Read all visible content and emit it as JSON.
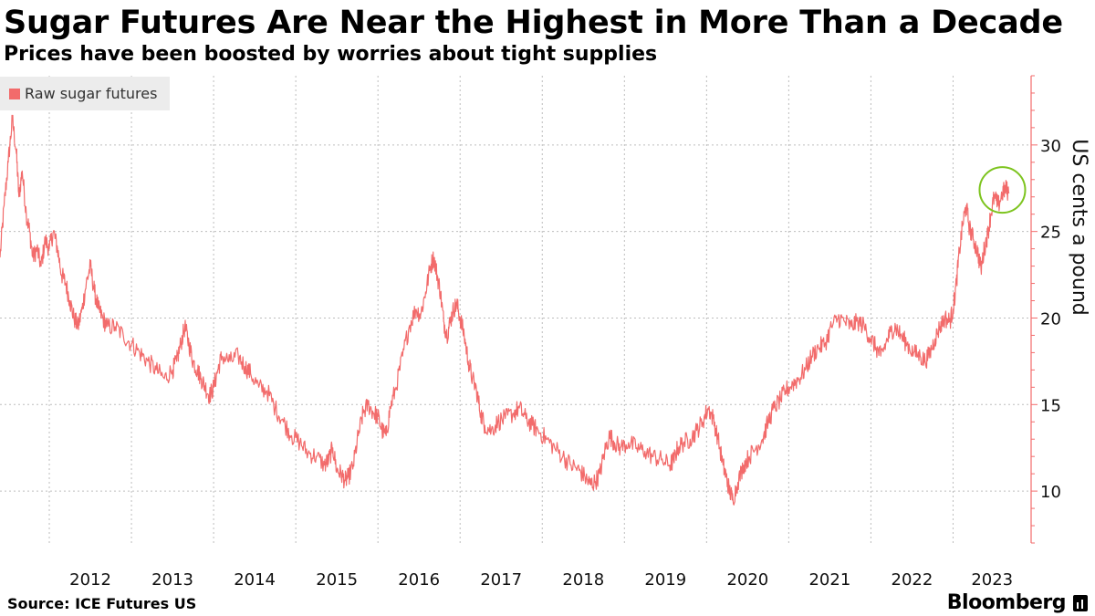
{
  "header": {
    "title": "Sugar Futures Are Near the Highest in More Than a Decade",
    "subtitle": "Prices have been boosted by worries about tight supplies"
  },
  "footer": {
    "source": "Source: ICE Futures US",
    "brand": "Bloomberg"
  },
  "colors": {
    "series": "#f26b6b",
    "highlight": "#7dc41f",
    "grid": "#bdbdbd"
  },
  "chart_data": {
    "type": "line",
    "title": "Sugar Futures Are Near the Highest in More Than a Decade",
    "subtitle": "Prices have been boosted by worries about tight supplies",
    "ylabel": "US cents a pound",
    "xlabel": "",
    "ylim": [
      7,
      34
    ],
    "xlim": [
      2011.4,
      2023.95
    ],
    "yticks": [
      10,
      15,
      20,
      25,
      30
    ],
    "xticks": [
      "2012",
      "2013",
      "2014",
      "2015",
      "2016",
      "2017",
      "2018",
      "2019",
      "2020",
      "2021",
      "2022",
      "2023"
    ],
    "xtick_positions": [
      2012.0,
      2013.0,
      2014.0,
      2015.0,
      2016.0,
      2017.0,
      2018.0,
      2019.0,
      2020.0,
      2021.0,
      2022.0,
      2023.0
    ],
    "grid": true,
    "legend": "top-left",
    "series": [
      {
        "name": "Raw sugar futures",
        "points": [
          [
            2011.4,
            23.5
          ],
          [
            2011.45,
            26.5
          ],
          [
            2011.5,
            29.0
          ],
          [
            2011.55,
            31.5
          ],
          [
            2011.6,
            29.5
          ],
          [
            2011.63,
            27.0
          ],
          [
            2011.67,
            28.5
          ],
          [
            2011.72,
            26.0
          ],
          [
            2011.76,
            25.0
          ],
          [
            2011.8,
            23.5
          ],
          [
            2011.85,
            24.0
          ],
          [
            2011.9,
            23.0
          ],
          [
            2011.95,
            24.5
          ],
          [
            2012.0,
            24.0
          ],
          [
            2012.05,
            25.0
          ],
          [
            2012.1,
            24.0
          ],
          [
            2012.15,
            22.5
          ],
          [
            2012.2,
            22.0
          ],
          [
            2012.25,
            21.0
          ],
          [
            2012.3,
            20.0
          ],
          [
            2012.35,
            19.5
          ],
          [
            2012.4,
            20.5
          ],
          [
            2012.45,
            22.0
          ],
          [
            2012.5,
            23.0
          ],
          [
            2012.55,
            21.5
          ],
          [
            2012.6,
            20.5
          ],
          [
            2012.65,
            20.0
          ],
          [
            2012.7,
            19.5
          ],
          [
            2012.8,
            19.5
          ],
          [
            2012.9,
            19.0
          ],
          [
            2013.0,
            18.5
          ],
          [
            2013.1,
            18.0
          ],
          [
            2013.2,
            17.5
          ],
          [
            2013.3,
            17.0
          ],
          [
            2013.4,
            16.5
          ],
          [
            2013.5,
            17.0
          ],
          [
            2013.55,
            17.5
          ],
          [
            2013.6,
            18.5
          ],
          [
            2013.65,
            19.5
          ],
          [
            2013.7,
            18.5
          ],
          [
            2013.75,
            17.5
          ],
          [
            2013.8,
            17.0
          ],
          [
            2013.85,
            16.5
          ],
          [
            2013.9,
            16.0
          ],
          [
            2013.95,
            15.5
          ],
          [
            2014.0,
            16.0
          ],
          [
            2014.05,
            17.0
          ],
          [
            2014.1,
            17.8
          ],
          [
            2014.2,
            17.5
          ],
          [
            2014.3,
            17.8
          ],
          [
            2014.38,
            17.2
          ],
          [
            2014.45,
            16.8
          ],
          [
            2014.55,
            16.0
          ],
          [
            2014.65,
            15.8
          ],
          [
            2014.75,
            14.8
          ],
          [
            2014.85,
            14.0
          ],
          [
            2014.95,
            13.2
          ],
          [
            2015.05,
            12.8
          ],
          [
            2015.15,
            12.2
          ],
          [
            2015.25,
            12.0
          ],
          [
            2015.35,
            11.5
          ],
          [
            2015.4,
            11.8
          ],
          [
            2015.45,
            12.5
          ],
          [
            2015.5,
            11.2
          ],
          [
            2015.55,
            11.0
          ],
          [
            2015.6,
            10.6
          ],
          [
            2015.64,
            10.8
          ],
          [
            2015.7,
            11.5
          ],
          [
            2015.76,
            13.2
          ],
          [
            2015.82,
            14.5
          ],
          [
            2015.88,
            15.0
          ],
          [
            2015.95,
            14.5
          ],
          [
            2016.0,
            14.3
          ],
          [
            2016.05,
            13.5
          ],
          [
            2016.1,
            13.2
          ],
          [
            2016.15,
            14.8
          ],
          [
            2016.22,
            16.0
          ],
          [
            2016.3,
            17.8
          ],
          [
            2016.38,
            19.5
          ],
          [
            2016.46,
            20.5
          ],
          [
            2016.52,
            20.2
          ],
          [
            2016.58,
            21.5
          ],
          [
            2016.64,
            23.0
          ],
          [
            2016.68,
            23.5
          ],
          [
            2016.72,
            22.5
          ],
          [
            2016.76,
            21.5
          ],
          [
            2016.8,
            19.8
          ],
          [
            2016.84,
            19.0
          ],
          [
            2016.88,
            19.8
          ],
          [
            2016.92,
            20.5
          ],
          [
            2016.96,
            20.8
          ],
          [
            2017.0,
            20.0
          ],
          [
            2017.05,
            19.0
          ],
          [
            2017.1,
            17.5
          ],
          [
            2017.15,
            16.5
          ],
          [
            2017.2,
            15.8
          ],
          [
            2017.25,
            14.5
          ],
          [
            2017.3,
            13.8
          ],
          [
            2017.38,
            13.5
          ],
          [
            2017.46,
            14.0
          ],
          [
            2017.55,
            14.2
          ],
          [
            2017.65,
            14.5
          ],
          [
            2017.72,
            14.8
          ],
          [
            2017.8,
            14.2
          ],
          [
            2017.88,
            13.8
          ],
          [
            2017.95,
            13.5
          ],
          [
            2018.05,
            13.0
          ],
          [
            2018.15,
            12.5
          ],
          [
            2018.25,
            12.0
          ],
          [
            2018.35,
            11.5
          ],
          [
            2018.45,
            11.2
          ],
          [
            2018.52,
            10.8
          ],
          [
            2018.58,
            10.4
          ],
          [
            2018.64,
            10.5
          ],
          [
            2018.7,
            11.0
          ],
          [
            2018.76,
            12.3
          ],
          [
            2018.82,
            13.2
          ],
          [
            2018.88,
            12.8
          ],
          [
            2018.95,
            12.5
          ],
          [
            2019.05,
            12.8
          ],
          [
            2019.15,
            12.5
          ],
          [
            2019.25,
            12.3
          ],
          [
            2019.35,
            12.0
          ],
          [
            2019.45,
            11.8
          ],
          [
            2019.55,
            11.5
          ],
          [
            2019.6,
            11.8
          ],
          [
            2019.65,
            12.5
          ],
          [
            2019.72,
            12.8
          ],
          [
            2019.8,
            13.0
          ],
          [
            2019.88,
            13.5
          ],
          [
            2019.95,
            14.0
          ],
          [
            2020.02,
            14.8
          ],
          [
            2020.08,
            14.2
          ],
          [
            2020.14,
            13.0
          ],
          [
            2020.2,
            11.5
          ],
          [
            2020.24,
            10.8
          ],
          [
            2020.28,
            10.0
          ],
          [
            2020.32,
            9.5
          ],
          [
            2020.38,
            10.5
          ],
          [
            2020.45,
            11.5
          ],
          [
            2020.52,
            12.0
          ],
          [
            2020.6,
            12.5
          ],
          [
            2020.68,
            13.0
          ],
          [
            2020.75,
            14.0
          ],
          [
            2020.82,
            14.8
          ],
          [
            2020.9,
            15.3
          ],
          [
            2020.96,
            15.8
          ],
          [
            2021.05,
            16.2
          ],
          [
            2021.12,
            16.5
          ],
          [
            2021.2,
            17.0
          ],
          [
            2021.28,
            17.8
          ],
          [
            2021.36,
            18.3
          ],
          [
            2021.44,
            18.5
          ],
          [
            2021.52,
            19.5
          ],
          [
            2021.6,
            20.0
          ],
          [
            2021.68,
            19.8
          ],
          [
            2021.76,
            19.5
          ],
          [
            2021.84,
            19.8
          ],
          [
            2021.92,
            19.5
          ],
          [
            2022.0,
            18.8
          ],
          [
            2022.06,
            18.3
          ],
          [
            2022.12,
            17.8
          ],
          [
            2022.18,
            18.5
          ],
          [
            2022.24,
            19.2
          ],
          [
            2022.3,
            19.5
          ],
          [
            2022.36,
            19.0
          ],
          [
            2022.44,
            18.5
          ],
          [
            2022.52,
            18.0
          ],
          [
            2022.6,
            17.8
          ],
          [
            2022.66,
            17.5
          ],
          [
            2022.72,
            18.0
          ],
          [
            2022.78,
            18.8
          ],
          [
            2022.84,
            19.5
          ],
          [
            2022.9,
            20.0
          ],
          [
            2022.96,
            19.8
          ],
          [
            2023.0,
            20.5
          ],
          [
            2023.04,
            22.0
          ],
          [
            2023.08,
            24.0
          ],
          [
            2023.12,
            25.5
          ],
          [
            2023.16,
            26.5
          ],
          [
            2023.2,
            25.2
          ],
          [
            2023.25,
            24.5
          ],
          [
            2023.3,
            23.8
          ],
          [
            2023.34,
            22.8
          ],
          [
            2023.38,
            24.0
          ],
          [
            2023.42,
            24.8
          ],
          [
            2023.46,
            26.0
          ],
          [
            2023.5,
            27.0
          ],
          [
            2023.55,
            26.5
          ],
          [
            2023.6,
            27.2
          ],
          [
            2023.64,
            27.5
          ],
          [
            2023.68,
            27.2
          ]
        ]
      }
    ],
    "annotations": [
      {
        "type": "circle",
        "x": 2023.6,
        "y": 27.4,
        "label": ""
      }
    ]
  }
}
